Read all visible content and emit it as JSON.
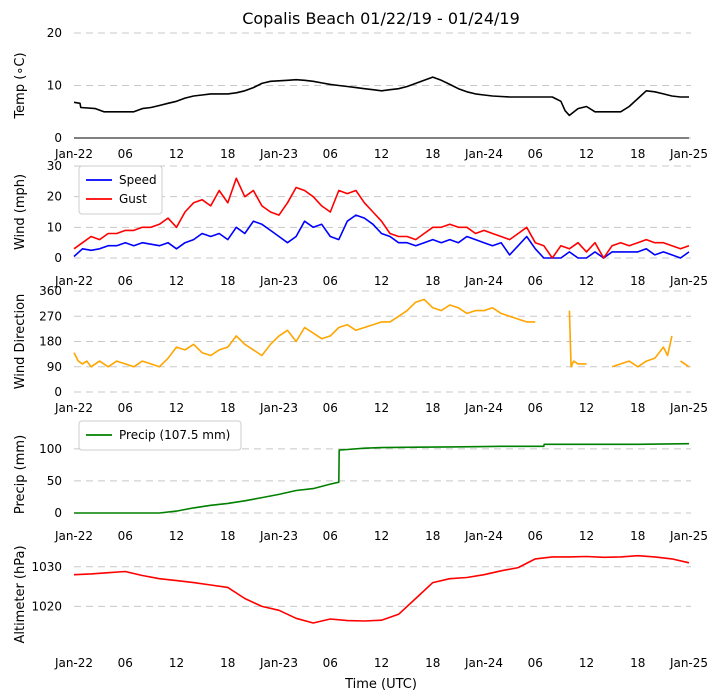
{
  "title": "Copalis Beach 01/22/19 - 01/24/19",
  "xlabel": "Time (UTC)",
  "x_ticks": [
    "Jan-22",
    "06",
    "12",
    "18",
    "Jan-23",
    "06",
    "12",
    "18",
    "Jan-24",
    "06",
    "12",
    "18",
    "Jan-25"
  ],
  "x_range_hours": [
    0,
    72
  ],
  "chart_data": [
    {
      "id": "temp",
      "type": "line",
      "ylabel": "Temp (∘C)",
      "ylim": [
        0,
        20
      ],
      "yticks": [
        "0",
        "10",
        "20"
      ],
      "grid": true,
      "series": [
        {
          "name": "Temperature",
          "color": "#000000",
          "x": [
            0,
            0.7,
            0.8,
            2.5,
            3.5,
            5,
            7,
            8,
            9,
            10,
            11,
            12,
            13,
            14,
            15,
            16,
            17,
            18,
            19,
            20,
            21,
            22,
            23,
            24,
            25,
            26,
            27,
            28,
            29,
            30,
            31,
            32,
            33,
            34,
            35,
            36,
            37,
            38,
            39,
            40,
            41,
            42,
            43,
            44,
            45,
            46,
            47,
            48,
            49,
            50,
            51,
            52,
            53,
            54,
            55,
            56,
            57,
            57.5,
            58,
            59,
            60,
            61,
            62,
            63,
            64,
            65,
            66,
            67,
            68,
            69,
            70,
            71,
            72
          ],
          "y": [
            6.8,
            6.6,
            5.8,
            5.6,
            5.0,
            5.0,
            5.0,
            5.6,
            5.8,
            6.2,
            6.6,
            7.0,
            7.6,
            8.0,
            8.2,
            8.4,
            8.4,
            8.4,
            8.6,
            9.0,
            9.6,
            10.4,
            10.8,
            10.9,
            11.0,
            11.1,
            11.0,
            10.8,
            10.5,
            10.2,
            10.0,
            9.8,
            9.6,
            9.4,
            9.2,
            9.0,
            9.2,
            9.4,
            9.8,
            10.4,
            11.0,
            11.6,
            11.0,
            10.2,
            9.4,
            8.8,
            8.4,
            8.2,
            8.0,
            7.9,
            7.8,
            7.8,
            7.8,
            7.8,
            7.8,
            7.8,
            7.0,
            5.2,
            4.3,
            5.6,
            6.0,
            5.0,
            5.0,
            5.0,
            5.0,
            6.0,
            7.5,
            9.0,
            8.8,
            8.4,
            8.0,
            7.8,
            7.8
          ]
        }
      ]
    },
    {
      "id": "wind",
      "type": "line",
      "ylabel": "Wind (mph)",
      "ylim": [
        0,
        30
      ],
      "yticks": [
        "0",
        "10",
        "20",
        "30"
      ],
      "grid": true,
      "legend": "top-left",
      "series": [
        {
          "name": "Speed",
          "color": "#0000ff",
          "x": [
            0,
            1,
            2,
            3,
            4,
            5,
            6,
            7,
            8,
            9,
            10,
            11,
            12,
            13,
            14,
            15,
            16,
            17,
            18,
            19,
            20,
            21,
            22,
            23,
            24,
            25,
            26,
            27,
            28,
            29,
            30,
            31,
            32,
            33,
            34,
            35,
            36,
            37,
            38,
            39,
            40,
            41,
            42,
            43,
            44,
            45,
            46,
            47,
            48,
            49,
            50,
            51,
            52,
            53,
            54,
            55,
            56,
            57,
            58,
            59,
            60,
            61,
            62,
            63,
            64,
            65,
            66,
            67,
            68,
            69,
            70,
            71,
            72
          ],
          "y": [
            0.5,
            3,
            2.5,
            3,
            4,
            4,
            5,
            4,
            5,
            4.5,
            4,
            5,
            3,
            5,
            6,
            8,
            7,
            8,
            6,
            10,
            8,
            12,
            11,
            9,
            7,
            5,
            7,
            12,
            10,
            11,
            7,
            6,
            12,
            14,
            13,
            11,
            8,
            7,
            5,
            5,
            4,
            5,
            6,
            5,
            6,
            5,
            7,
            6,
            5,
            4,
            5,
            1,
            4,
            7,
            3,
            0,
            0,
            0,
            2,
            0,
            0,
            2,
            0,
            2,
            2,
            2,
            2,
            3,
            1,
            2,
            1,
            0,
            2
          ]
        },
        {
          "name": "Gust",
          "color": "#ff0000",
          "x": [
            0,
            1,
            2,
            3,
            4,
            5,
            6,
            7,
            8,
            9,
            10,
            11,
            12,
            13,
            14,
            15,
            16,
            17,
            18,
            19,
            20,
            21,
            22,
            23,
            24,
            25,
            26,
            27,
            28,
            29,
            30,
            31,
            32,
            33,
            34,
            35,
            36,
            37,
            38,
            39,
            40,
            41,
            42,
            43,
            44,
            45,
            46,
            47,
            48,
            49,
            50,
            51,
            52,
            53,
            54,
            55,
            56,
            57,
            58,
            59,
            60,
            61,
            62,
            63,
            64,
            65,
            66,
            67,
            68,
            69,
            70,
            71,
            72
          ],
          "y": [
            3,
            5,
            7,
            6,
            8,
            8,
            9,
            9,
            10,
            10,
            11,
            13,
            10,
            15,
            18,
            19,
            17,
            22,
            18,
            26,
            20,
            22,
            17,
            15,
            14,
            18,
            23,
            22,
            20,
            17,
            15,
            22,
            21,
            22,
            18,
            15,
            12,
            8,
            7,
            7,
            6,
            8,
            10,
            10,
            11,
            10,
            10,
            8,
            9,
            8,
            7,
            6,
            8,
            10,
            5,
            4,
            0,
            4,
            3,
            5,
            2,
            5,
            0,
            4,
            5,
            4,
            5,
            6,
            5,
            5,
            4,
            3,
            4
          ]
        }
      ]
    },
    {
      "id": "direction",
      "type": "line",
      "ylabel": "Wind Direction",
      "ylim": [
        0,
        360
      ],
      "yticks": [
        "0",
        "90",
        "180",
        "270",
        "360"
      ],
      "grid": true,
      "series": [
        {
          "name": "Direction",
          "color": "#ffa500",
          "x": [
            0,
            0.5,
            1,
            1.5,
            2,
            3,
            4,
            5,
            6,
            7,
            8,
            9,
            10,
            11,
            12,
            13,
            14,
            15,
            16,
            17,
            18,
            19,
            20,
            21,
            22,
            23,
            24,
            25,
            26,
            27,
            28,
            29,
            30,
            31,
            32,
            33,
            34,
            35,
            36,
            37,
            38,
            39,
            40,
            41,
            42,
            43,
            44,
            45,
            46,
            47,
            48,
            49,
            50,
            51,
            52,
            53,
            54,
            null,
            58,
            58.2,
            58.5,
            59,
            60,
            null,
            62,
            null,
            63,
            64,
            65,
            66,
            67,
            68,
            69,
            69.5,
            70,
            null,
            71,
            72
          ],
          "y": [
            140,
            110,
            100,
            110,
            90,
            110,
            90,
            110,
            100,
            90,
            110,
            100,
            90,
            120,
            160,
            150,
            170,
            140,
            130,
            150,
            160,
            200,
            170,
            150,
            130,
            170,
            200,
            220,
            180,
            230,
            210,
            190,
            200,
            230,
            240,
            220,
            230,
            240,
            250,
            250,
            270,
            290,
            320,
            330,
            300,
            290,
            310,
            300,
            280,
            290,
            290,
            300,
            280,
            270,
            260,
            250,
            250,
            null,
            290,
            90,
            110,
            100,
            100,
            null,
            90,
            null,
            90,
            100,
            110,
            90,
            110,
            120,
            160,
            130,
            200,
            null,
            110,
            90
          ]
        }
      ]
    },
    {
      "id": "precip",
      "type": "line",
      "ylabel": "Precip (mm)",
      "ylim": [
        0,
        120
      ],
      "yticks": [
        "0",
        "50",
        "100"
      ],
      "grid": true,
      "legend": "top-left",
      "series": [
        {
          "name": "Precip (107.5 mm)",
          "color": "#008000",
          "x": [
            0,
            6,
            10,
            12,
            14,
            16,
            18,
            20,
            22,
            24,
            26,
            28,
            30,
            31,
            31.05,
            32,
            34,
            36,
            40,
            44,
            48,
            50,
            52,
            55,
            55.05,
            60,
            66,
            72
          ],
          "y": [
            0,
            0,
            0,
            3,
            8,
            12,
            15,
            19,
            24,
            29,
            35,
            38,
            45,
            48,
            98,
            99,
            101,
            102,
            102.5,
            103,
            103.5,
            104,
            104,
            104,
            107,
            107,
            107,
            108
          ]
        }
      ]
    },
    {
      "id": "altimeter",
      "type": "line",
      "ylabel": "Altimeter (hPa)",
      "ylim": [
        1011,
        1035
      ],
      "yticks": [
        "1020",
        "1030"
      ],
      "grid": true,
      "series": [
        {
          "name": "Altimeter",
          "color": "#ff0000",
          "x": [
            0,
            2,
            4,
            6,
            8,
            10,
            12,
            14,
            16,
            18,
            20,
            22,
            24,
            26,
            28,
            30,
            32,
            34,
            36,
            38,
            40,
            42,
            44,
            46,
            48,
            50,
            52,
            54,
            56,
            58,
            60,
            62,
            64,
            66,
            68,
            70,
            72
          ],
          "y": [
            1028,
            1028.2,
            1028.5,
            1028.8,
            1027.8,
            1027,
            1026.5,
            1026,
            1025.4,
            1024.8,
            1022,
            1020,
            1019,
            1017,
            1015.8,
            1016.8,
            1016.4,
            1016.3,
            1016.5,
            1018,
            1022,
            1026,
            1027,
            1027.3,
            1028,
            1029,
            1029.8,
            1032,
            1032.5,
            1032.5,
            1032.6,
            1032.4,
            1032.5,
            1032.8,
            1032.5,
            1032,
            1031
          ]
        }
      ]
    }
  ]
}
